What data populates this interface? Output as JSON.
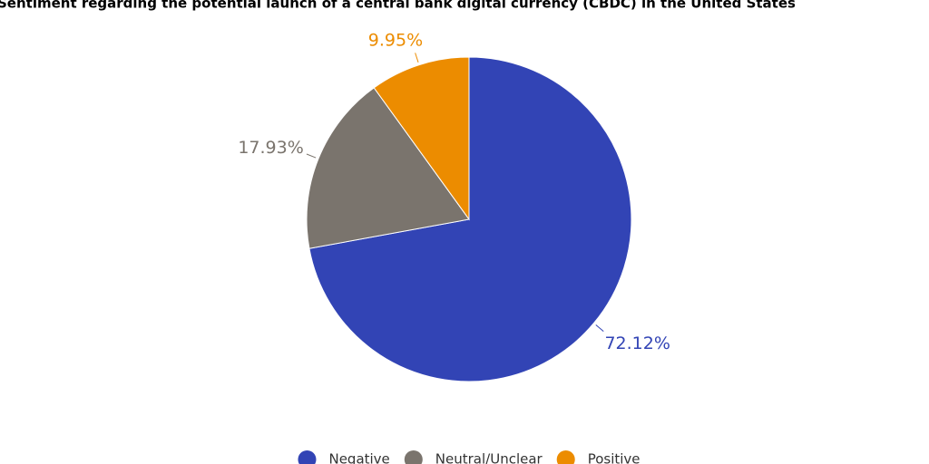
{
  "chart_data": {
    "type": "pie",
    "title": "Sentiment regarding the potential launch of a central bank digital currency (CBDC) in the United States",
    "categories": [
      "Negative",
      "Neutral/Unclear",
      "Positive"
    ],
    "values": [
      72.12,
      17.93,
      9.95
    ],
    "value_labels": [
      "72.12%",
      "17.93%",
      "9.95%"
    ],
    "colors": [
      "#3244b5",
      "#7a746d",
      "#ec8c00"
    ],
    "legend": "bottom"
  }
}
